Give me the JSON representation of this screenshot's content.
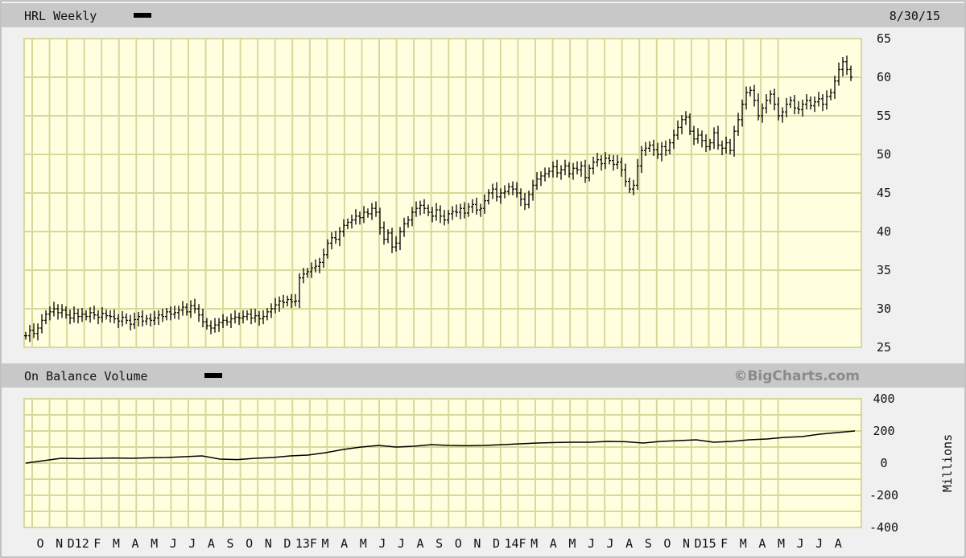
{
  "header": {
    "title": "HRL Weekly",
    "date": "8/30/15"
  },
  "lower_header": {
    "title": "On Balance Volume",
    "brand": "©BigCharts.com"
  },
  "colors": {
    "plot_bg": "#ffffe0",
    "grid": "#d8d89a",
    "band": "#c8c8c8",
    "line": "#000000"
  },
  "chart_data": [
    {
      "type": "ohlc",
      "title": "HRL Weekly",
      "ylim": [
        25,
        65
      ],
      "y_ticks": [
        "65",
        "60",
        "55",
        "50",
        "45",
        "40",
        "35",
        "30",
        "25"
      ],
      "grid": true,
      "weekly_close": [
        26.5,
        27.2,
        26.8,
        27.5,
        28.5,
        29.3,
        29.6,
        30,
        29.5,
        29.8,
        29.2,
        28.8,
        29.4,
        29,
        29.3,
        29,
        29.5,
        29.2,
        28.9,
        29.4,
        29.1,
        29,
        28.7,
        28.4,
        28.9,
        28.5,
        28,
        28.6,
        29,
        28.4,
        28.7,
        28.5,
        28.8,
        29.2,
        29,
        29.6,
        29.3,
        29.5,
        29.8,
        30.2,
        29.6,
        30.4,
        30,
        29.2,
        28.3,
        27.8,
        27.5,
        27.9,
        28.2,
        28.5,
        28.3,
        28.7,
        28.9,
        28.8,
        29,
        29.3,
        28.8,
        29.1,
        28.7,
        29,
        29.6,
        30,
        30.5,
        31,
        30.8,
        31.2,
        30.9,
        31,
        34,
        34.5,
        34.8,
        35.3,
        35.5,
        36,
        37,
        38.5,
        39.2,
        39,
        40,
        40.8,
        41.2,
        41.5,
        42,
        41.8,
        42.5,
        42.3,
        43,
        42.5,
        40.5,
        39,
        39.8,
        38,
        38.5,
        40,
        41,
        41.5,
        42.5,
        43,
        43.4,
        43,
        42.5,
        42,
        42.8,
        42,
        41.5,
        42.3,
        42.6,
        42.5,
        43,
        42.4,
        43.2,
        43.5,
        42.8,
        43,
        44,
        45,
        45.5,
        44.5,
        45,
        45.2,
        45.8,
        45.5,
        45,
        44.2,
        43.5,
        44.8,
        46,
        46.8,
        47.2,
        47.5,
        47.8,
        48.4,
        47.6,
        48,
        48.5,
        47.5,
        48.2,
        48,
        48.5,
        47,
        48.2,
        49,
        49.3,
        48.8,
        49.5,
        49.2,
        48.7,
        49,
        48,
        46.5,
        45.5,
        46,
        48.5,
        50.5,
        50.8,
        51.2,
        50.6,
        50,
        51,
        50.5,
        51.5,
        52.5,
        53.5,
        54.5,
        54.8,
        53,
        52,
        52.5,
        51.8,
        51,
        51.5,
        52.8,
        51.2,
        50.8,
        51.5,
        50.5,
        53,
        54.5,
        56.5,
        58,
        58.3,
        57,
        55,
        56,
        57,
        57.8,
        56.5,
        55,
        55.5,
        56.5,
        57,
        56,
        55.8,
        56.5,
        57,
        56.3,
        56.8,
        57.2,
        56.5,
        57.5,
        58,
        59.5,
        61,
        62,
        61,
        60
      ]
    },
    {
      "type": "line",
      "title": "On Balance Volume",
      "ylabel": "Millions",
      "ylim": [
        -400,
        400
      ],
      "y_ticks": [
        "400",
        "200",
        "0",
        "-200",
        "-400"
      ],
      "grid": true,
      "monthly_values": [
        0,
        15,
        30,
        28,
        30,
        32,
        30,
        33,
        35,
        40,
        45,
        25,
        22,
        30,
        35,
        45,
        50,
        65,
        85,
        100,
        110,
        100,
        105,
        115,
        110,
        108,
        110,
        115,
        120,
        125,
        128,
        130,
        130,
        135,
        133,
        125,
        135,
        140,
        145,
        130,
        135,
        145,
        150,
        160,
        165,
        180,
        190,
        200
      ]
    }
  ],
  "x_ticks": [
    "O",
    "N",
    "D12",
    "F",
    "M",
    "A",
    "M",
    "J",
    "J",
    "A",
    "S",
    "O",
    "N",
    "D",
    "13F",
    "M",
    "A",
    "M",
    "J",
    "J",
    "A",
    "S",
    "O",
    "N",
    "D",
    "14F",
    "M",
    "A",
    "M",
    "J",
    "J",
    "A",
    "S",
    "O",
    "N",
    "D15",
    "F",
    "M",
    "A",
    "M",
    "J",
    "J",
    "A"
  ]
}
